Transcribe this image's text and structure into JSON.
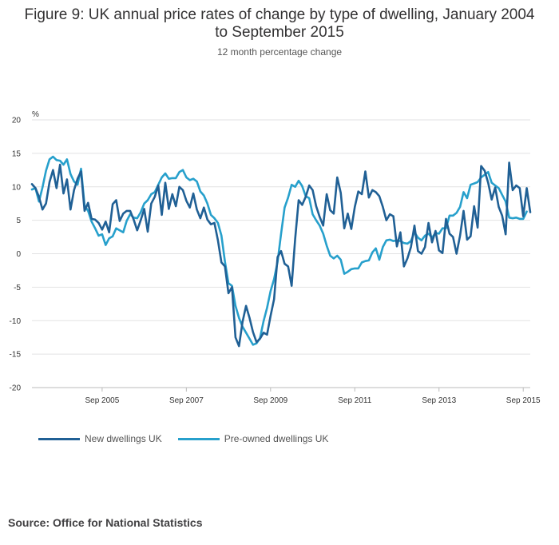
{
  "title_line1": "Figure 9: UK annual price rates of change by type of dwelling, January 2004",
  "title_line2": "to September 2015",
  "subtitle": "12 month percentage change",
  "source": "Source: Office for National Statistics",
  "chart_data": {
    "type": "line",
    "ylabel": "%",
    "ylim": [
      -20,
      20
    ],
    "yticks": [
      20,
      15,
      10,
      5,
      0,
      -5,
      -10,
      -15,
      -20
    ],
    "x_start": "Jan 2004",
    "x_end": "Sep 2015",
    "xticks": [
      {
        "label": "Sep 2005",
        "month_index": 20
      },
      {
        "label": "Sep 2007",
        "month_index": 44
      },
      {
        "label": "Sep 2009",
        "month_index": 68
      },
      {
        "label": "Sep 2011",
        "month_index": 92
      },
      {
        "label": "Sep 2013",
        "month_index": 116
      },
      {
        "label": "Sep 2015",
        "month_index": 140
      }
    ],
    "grid": true,
    "series": [
      {
        "name": "New dwellings UK",
        "color": "#206095",
        "values": [
          10.4,
          9.8,
          8.5,
          6.6,
          7.5,
          10.7,
          12.5,
          9.8,
          13.3,
          9.0,
          11.1,
          6.6,
          9.5,
          11.2,
          12.3,
          6.4,
          7.6,
          5.2,
          5.1,
          4.6,
          3.6,
          4.8,
          3.2,
          7.4,
          8.0,
          4.9,
          6.0,
          6.4,
          6.4,
          5.1,
          3.5,
          5.0,
          6.7,
          3.3,
          7.5,
          8.5,
          10.2,
          5.8,
          10.6,
          6.7,
          8.9,
          7.1,
          10.0,
          9.5,
          7.9,
          6.9,
          9.0,
          6.6,
          5.3,
          6.9,
          5.1,
          4.4,
          4.6,
          2.0,
          -1.3,
          -1.9,
          -5.9,
          -5.0,
          -12.5,
          -13.8,
          -10.2,
          -7.8,
          -9.6,
          -11.7,
          -13.2,
          -12.7,
          -11.8,
          -12.1,
          -9.3,
          -6.8,
          -0.5,
          0.4,
          -1.5,
          -1.9,
          -4.8,
          2.2,
          8.0,
          7.3,
          8.5,
          10.2,
          9.5,
          7.1,
          5.5,
          4.2,
          8.9,
          6.5,
          6.0,
          11.4,
          9.1,
          3.8,
          6.0,
          3.7,
          7.0,
          9.3,
          8.9,
          12.3,
          8.4,
          9.5,
          9.2,
          8.6,
          7.0,
          5.0,
          5.9,
          5.6,
          1.1,
          3.2,
          -1.9,
          -0.7,
          1.0,
          4.2,
          0.4,
          0.0,
          1.0,
          4.6,
          1.7,
          3.4,
          0.5,
          0.1,
          5.2,
          3.0,
          2.5,
          0.0,
          2.7,
          6.4,
          2.1,
          2.6,
          7.1,
          3.9,
          13.1,
          12.4,
          10.6,
          8.1,
          9.9,
          7.0,
          5.7,
          2.9,
          13.6,
          9.5,
          10.2,
          9.8,
          5.6,
          9.8,
          6.2
        ]
      },
      {
        "name": "Pre-owned dwellings UK",
        "color": "#27a0cc",
        "values": [
          9.6,
          9.8,
          7.8,
          9.9,
          12.4,
          14.1,
          14.5,
          14.0,
          13.9,
          13.3,
          14.1,
          11.9,
          10.8,
          10.3,
          12.7,
          7.2,
          6.4,
          4.8,
          3.8,
          2.7,
          2.9,
          1.3,
          2.3,
          2.6,
          3.8,
          3.5,
          3.2,
          4.9,
          5.9,
          5.4,
          5.3,
          6.2,
          7.5,
          8.0,
          8.9,
          9.2,
          10.3,
          11.4,
          12.0,
          11.2,
          11.3,
          11.3,
          12.2,
          12.5,
          11.4,
          11.0,
          11.2,
          10.8,
          9.3,
          8.7,
          7.5,
          5.8,
          5.3,
          4.6,
          2.7,
          -1.2,
          -4.4,
          -4.8,
          -7.8,
          -9.6,
          -10.9,
          -11.8,
          -12.7,
          -13.6,
          -13.4,
          -12.6,
          -10.1,
          -8.1,
          -5.6,
          -3.8,
          -1.2,
          3.0,
          6.9,
          8.4,
          10.3,
          10.0,
          10.9,
          10.1,
          8.6,
          8.3,
          5.9,
          5.0,
          4.2,
          3.0,
          1.2,
          -0.3,
          -0.7,
          -0.3,
          -0.9,
          -3.0,
          -2.7,
          -2.3,
          -2.2,
          -2.2,
          -1.3,
          -1.1,
          -1.0,
          0.2,
          0.8,
          -0.9,
          1.0,
          2.0,
          2.1,
          1.9,
          2.0,
          1.9,
          1.6,
          1.5,
          1.9,
          3.2,
          2.4,
          2.0,
          2.7,
          3.0,
          2.4,
          3.1,
          3.0,
          3.8,
          3.8,
          5.7,
          5.7,
          6.1,
          7.0,
          9.2,
          8.3,
          10.3,
          10.5,
          10.7,
          11.4,
          11.8,
          12.2,
          10.6,
          10.2,
          9.8,
          8.8,
          7.8,
          5.4,
          5.3,
          5.4,
          5.2,
          5.2,
          6.3
        ]
      }
    ]
  }
}
